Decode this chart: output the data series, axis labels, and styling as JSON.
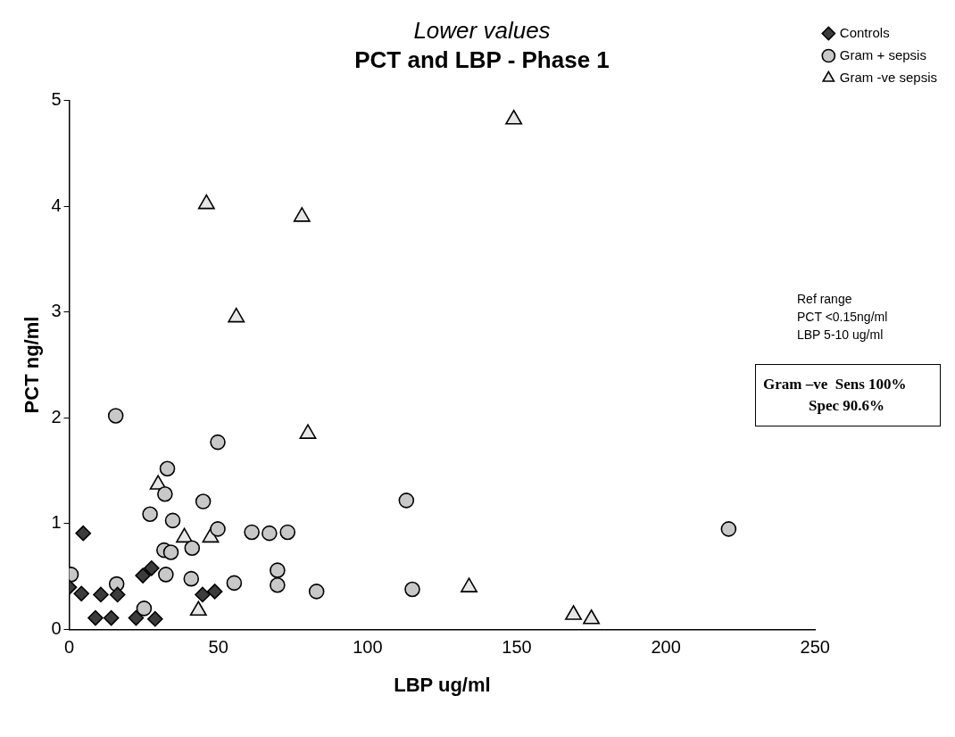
{
  "chart_data": {
    "type": "scatter",
    "subtitle": "Lower values",
    "title": "PCT and LBP - Phase 1",
    "xlabel": "LBP ug/ml",
    "ylabel": "PCT ng/ml",
    "xlim": [
      0,
      250
    ],
    "xticks": [
      0,
      50,
      100,
      150,
      200,
      250
    ],
    "ylim": [
      0,
      5
    ],
    "yticks": [
      0,
      1,
      2,
      3,
      4,
      5
    ],
    "grid": false,
    "legend": "top right",
    "series": [
      {
        "name": "Controls",
        "color": "#3c3c3c",
        "marker": "diamond",
        "x": [
          4.7,
          0,
          4.1,
          10.6,
          16.2,
          24.7,
          27.6,
          44.7,
          48.8,
          8.8,
          14.1,
          22.4,
          28.8
        ],
        "values": [
          0.91,
          0.4,
          0.34,
          0.33,
          0.33,
          0.51,
          0.58,
          0.33,
          0.36,
          0.11,
          0.11,
          0.11,
          0.1
        ]
      },
      {
        "name": "Gram + sepsis",
        "color": "#c8c8c8",
        "marker": "circle",
        "x": [
          15.6,
          49.8,
          32.9,
          32.1,
          44.9,
          27.1,
          34.7,
          49.8,
          61.2,
          67.1,
          73.2,
          31.8,
          34.1,
          41.2,
          0.6,
          32.4,
          40.9,
          15.9,
          55.3,
          69.8,
          69.8,
          82.9,
          25.1,
          113,
          115,
          221
        ],
        "values": [
          2.02,
          1.77,
          1.52,
          1.28,
          1.21,
          1.09,
          1.03,
          0.95,
          0.92,
          0.91,
          0.92,
          0.75,
          0.73,
          0.77,
          0.52,
          0.52,
          0.48,
          0.43,
          0.44,
          0.56,
          0.42,
          0.36,
          0.2,
          1.22,
          0.38,
          0.95
        ]
      },
      {
        "name": "Gram -ve sepsis",
        "color": "#e6e6e6",
        "marker": "triangle",
        "x": [
          29.8,
          38.6,
          47.4,
          43.3,
          46,
          78,
          56,
          80,
          149,
          134,
          169,
          175
        ],
        "values": [
          1.37,
          0.87,
          0.87,
          0.18,
          4.02,
          3.9,
          2.95,
          1.85,
          4.82,
          0.4,
          0.14,
          0.1
        ]
      }
    ],
    "annotations": [
      "Ref range\nPCT <0.15ng/ml\nLBP 5-10 ug/ml",
      "Gram –ve  Sens 100%\n            Spec 90.6%"
    ]
  }
}
